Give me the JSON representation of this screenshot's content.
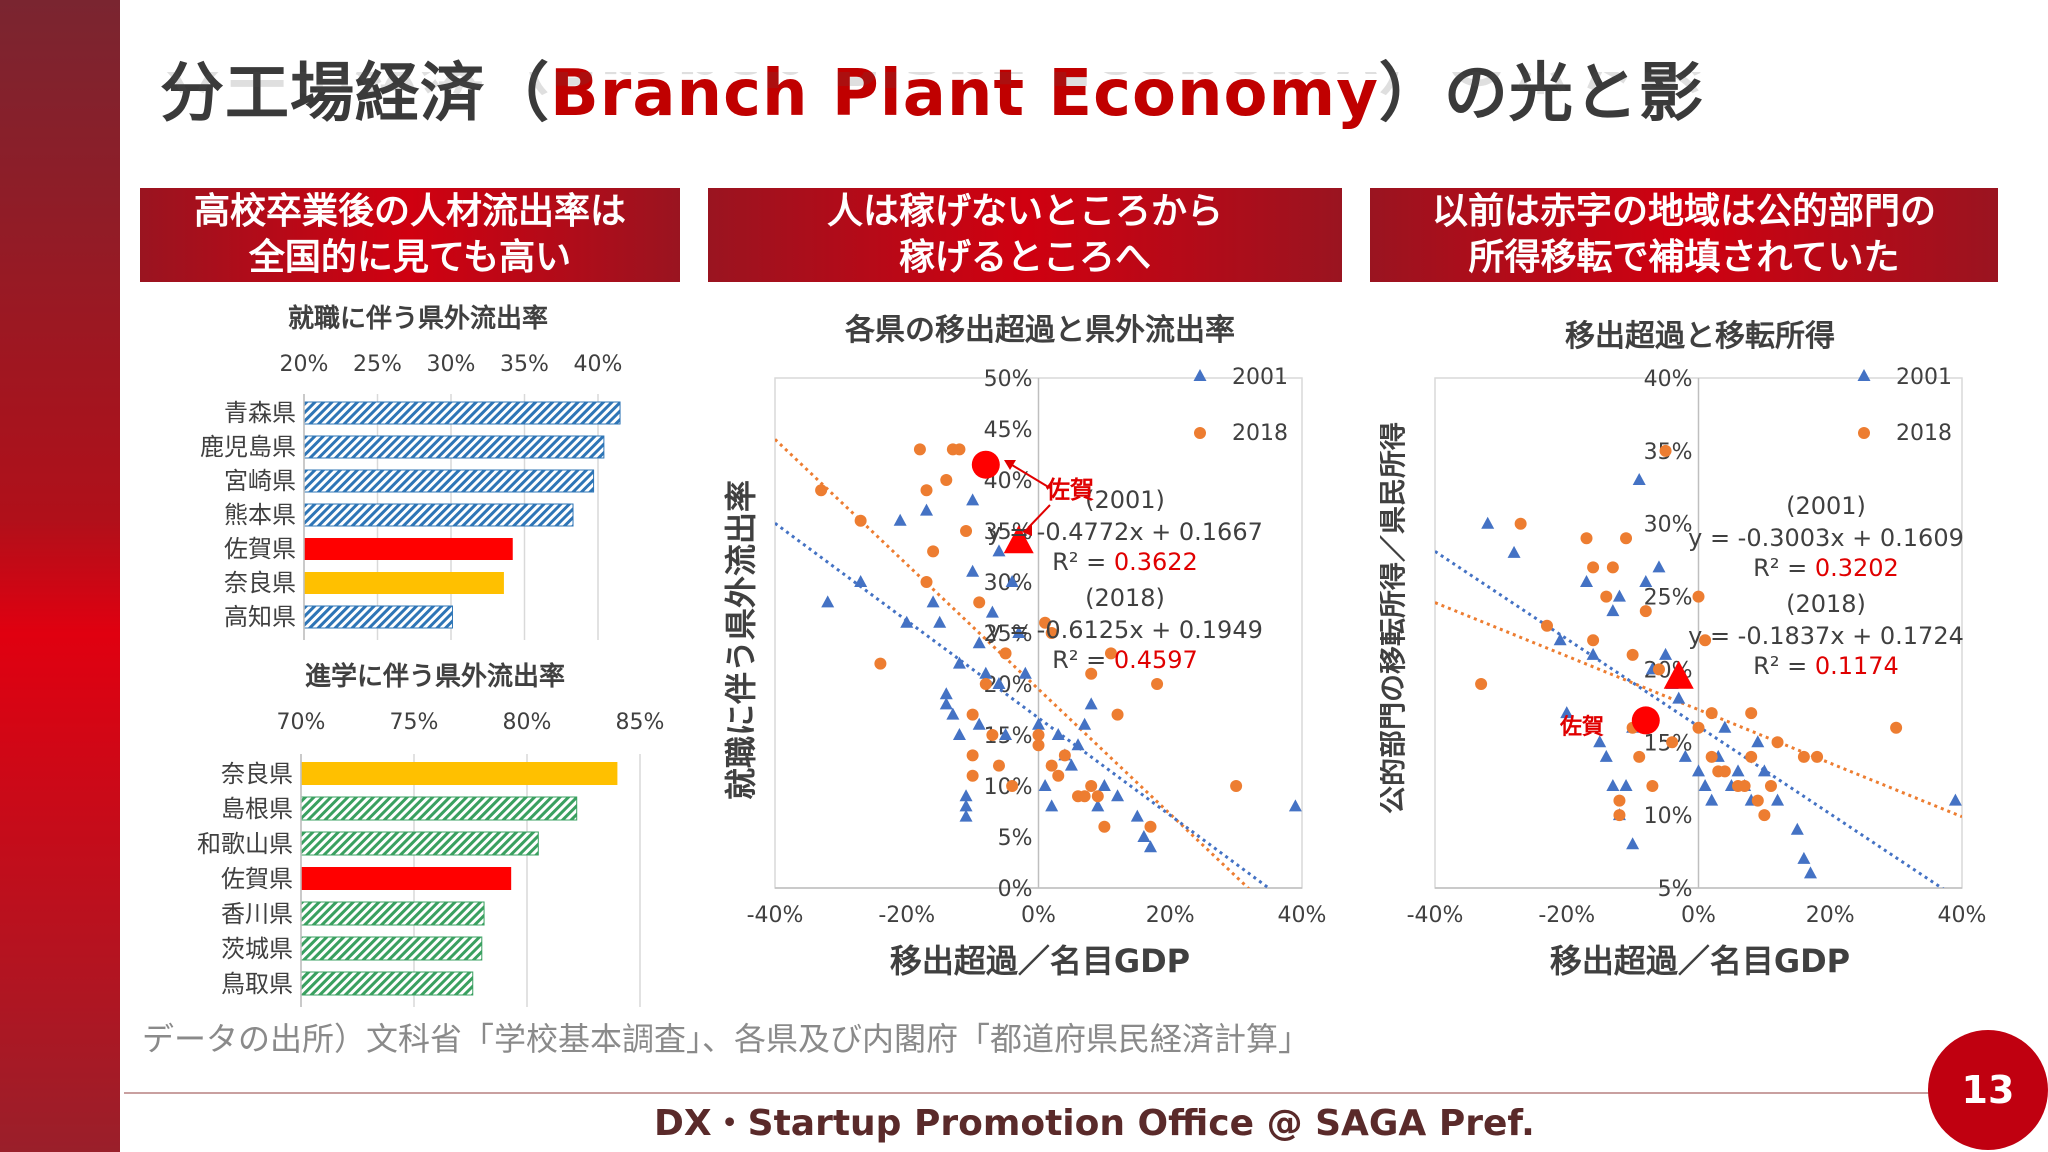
{
  "title": {
    "part1": "分工場経済（",
    "part2": "Branch Plant Economy",
    "part3": "）の光と影"
  },
  "headers": [
    {
      "text": "高校卒業後の人材流出率は\n全国的に見ても高い"
    },
    {
      "text": "人は稼げないところから\n稼げるところへ"
    },
    {
      "text": "以前は赤字の地域は公的部門の\n所得移転で補填されていた"
    }
  ],
  "colors": {
    "hatch_blue": "#2e75b6",
    "hatch_green": "#3aa060",
    "red": "#ff0000",
    "yellow": "#ffc000",
    "tri": "#4472c4",
    "dot": "#ed7d31"
  },
  "bar1": {
    "title": "就職に伴う県外流出率",
    "ticks": [
      "20%",
      "25%",
      "30%",
      "35%",
      "40%"
    ],
    "xmin": 20,
    "xmax": 40,
    "items": [
      {
        "label": "青森県",
        "value": 41.5,
        "style": "blue"
      },
      {
        "label": "鹿児島県",
        "value": 40.4,
        "style": "blue"
      },
      {
        "label": "宮崎県",
        "value": 39.7,
        "style": "blue"
      },
      {
        "label": "熊本県",
        "value": 38.3,
        "style": "blue"
      },
      {
        "label": "佐賀県",
        "value": 34.2,
        "style": "red"
      },
      {
        "label": "奈良県",
        "value": 33.6,
        "style": "yellow"
      },
      {
        "label": "高知県",
        "value": 30.1,
        "style": "blue"
      }
    ]
  },
  "bar2": {
    "title": "進学に伴う県外流出率",
    "ticks": [
      "70%",
      "75%",
      "80%",
      "85%"
    ],
    "xmin": 70,
    "xmax": 85,
    "items": [
      {
        "label": "奈良県",
        "value": 84.0,
        "style": "yellow"
      },
      {
        "label": "島根県",
        "value": 82.2,
        "style": "green"
      },
      {
        "label": "和歌山県",
        "value": 80.5,
        "style": "green"
      },
      {
        "label": "佐賀県",
        "value": 79.3,
        "style": "red"
      },
      {
        "label": "香川県",
        "value": 78.1,
        "style": "green"
      },
      {
        "label": "茨城県",
        "value": 78.0,
        "style": "green"
      },
      {
        "label": "鳥取県",
        "value": 77.6,
        "style": "green"
      }
    ]
  },
  "chart_data": [
    {
      "type": "scatter",
      "title": "各県の移出超過と県外流出率",
      "xlabel": "移出超過／名目GDP",
      "ylabel": "就職に伴う県外流出率",
      "xlim": [
        -40,
        40
      ],
      "ylim": [
        0,
        50
      ],
      "xticks": [
        "-40%",
        "-20%",
        "0%",
        "20%",
        "40%"
      ],
      "yticks": [
        "0%",
        "5%",
        "10%",
        "15%",
        "20%",
        "25%",
        "30%",
        "35%",
        "40%",
        "45%",
        "50%"
      ],
      "legend": [
        "2001",
        "2018"
      ],
      "eq2001": {
        "head": "(2001)",
        "eq": "y = -0.4772x + 0.1667",
        "r2label": "R² = ",
        "r2": "0.3622"
      },
      "eq2018": {
        "head": "(2018)",
        "eq": "y = -0.6125x + 0.1949",
        "r2label": "R² = ",
        "r2": "0.4597"
      },
      "saga_label": "佐賀",
      "saga2001": [
        -3,
        34
      ],
      "saga2018": [
        -8,
        41.5
      ],
      "trend2001": {
        "slope": -0.4772,
        "intercept": 16.67
      },
      "trend2018": {
        "slope": -0.6125,
        "intercept": 19.49
      },
      "series": [
        {
          "name": "2001",
          "points": [
            [
              -32,
              28
            ],
            [
              -27,
              30
            ],
            [
              -21,
              36
            ],
            [
              -20,
              26
            ],
            [
              -17,
              37
            ],
            [
              -16,
              28
            ],
            [
              -15,
              26
            ],
            [
              -14,
              19
            ],
            [
              -14,
              18
            ],
            [
              -13,
              17
            ],
            [
              -12,
              15
            ],
            [
              -12,
              22
            ],
            [
              -11,
              9
            ],
            [
              -11,
              8
            ],
            [
              -11,
              7
            ],
            [
              -10,
              38
            ],
            [
              -10,
              31
            ],
            [
              -9,
              24
            ],
            [
              -9,
              16
            ],
            [
              -8,
              21
            ],
            [
              -7,
              27
            ],
            [
              -6,
              33
            ],
            [
              -6,
              20
            ],
            [
              -5,
              15
            ],
            [
              -4,
              30
            ],
            [
              -3,
              25
            ],
            [
              -2,
              21
            ],
            [
              0,
              16
            ],
            [
              1,
              10
            ],
            [
              2,
              8
            ],
            [
              3,
              15
            ],
            [
              4,
              13
            ],
            [
              5,
              12
            ],
            [
              6,
              14
            ],
            [
              7,
              16
            ],
            [
              8,
              18
            ],
            [
              9,
              8
            ],
            [
              10,
              10
            ],
            [
              12,
              9
            ],
            [
              15,
              7
            ],
            [
              16,
              5
            ],
            [
              17,
              4
            ],
            [
              39,
              8
            ]
          ]
        },
        {
          "name": "2018",
          "points": [
            [
              -33,
              39
            ],
            [
              -27,
              36
            ],
            [
              -24,
              22
            ],
            [
              -18,
              43
            ],
            [
              -17,
              39
            ],
            [
              -17,
              30
            ],
            [
              -16,
              33
            ],
            [
              -14,
              40
            ],
            [
              -13,
              43
            ],
            [
              -12,
              43
            ],
            [
              -11,
              35
            ],
            [
              -10,
              17
            ],
            [
              -10,
              13
            ],
            [
              -10,
              11
            ],
            [
              -9,
              28
            ],
            [
              -8,
              20
            ],
            [
              -7,
              15
            ],
            [
              -6,
              12
            ],
            [
              -5,
              23
            ],
            [
              -4,
              10
            ],
            [
              0,
              15
            ],
            [
              0,
              14
            ],
            [
              1,
              26
            ],
            [
              2,
              25
            ],
            [
              2,
              12
            ],
            [
              3,
              11
            ],
            [
              4,
              13
            ],
            [
              6,
              9
            ],
            [
              7,
              9
            ],
            [
              8,
              10
            ],
            [
              8,
              21
            ],
            [
              9,
              9
            ],
            [
              10,
              6
            ],
            [
              11,
              23
            ],
            [
              12,
              17
            ],
            [
              17,
              6
            ],
            [
              18,
              20
            ],
            [
              30,
              10
            ]
          ]
        }
      ]
    },
    {
      "type": "scatter",
      "title": "移出超過と移転所得",
      "xlabel": "移出超過／名目GDP",
      "ylabel": "公的部門の移転所得／県民所得",
      "xlim": [
        -40,
        40
      ],
      "ylim": [
        5,
        40
      ],
      "xticks": [
        "-40%",
        "-20%",
        "0%",
        "20%",
        "40%"
      ],
      "yticks": [
        "5%",
        "10%",
        "15%",
        "20%",
        "25%",
        "30%",
        "35%",
        "40%"
      ],
      "legend": [
        "2001",
        "2018"
      ],
      "eq2001": {
        "head": "(2001)",
        "eq": "y = -0.3003x + 0.1609",
        "r2label": "R² = ",
        "r2": "0.3202"
      },
      "eq2018": {
        "head": "(2018)",
        "eq": "y = -0.1837x + 0.1724",
        "r2label": "R² = ",
        "r2": "0.1174"
      },
      "saga_label": "佐賀",
      "saga2001": [
        -3,
        19.5
      ],
      "saga2018": [
        -8,
        16.5
      ],
      "trend2001": {
        "slope": -0.3003,
        "intercept": 16.09
      },
      "trend2018": {
        "slope": -0.1837,
        "intercept": 17.24
      },
      "series": [
        {
          "name": "2001",
          "points": [
            [
              -32,
              30
            ],
            [
              -28,
              28
            ],
            [
              -21,
              22
            ],
            [
              -20,
              17
            ],
            [
              -17,
              26
            ],
            [
              -16,
              21
            ],
            [
              -15,
              15
            ],
            [
              -14,
              14
            ],
            [
              -13,
              24
            ],
            [
              -13,
              12
            ],
            [
              -12,
              25
            ],
            [
              -12,
              10
            ],
            [
              -11,
              12
            ],
            [
              -10,
              16
            ],
            [
              -10,
              8
            ],
            [
              -9,
              33
            ],
            [
              -8,
              26
            ],
            [
              -7,
              20
            ],
            [
              -6,
              27
            ],
            [
              -5,
              21
            ],
            [
              -4,
              19
            ],
            [
              -3,
              18
            ],
            [
              -2,
              14
            ],
            [
              0,
              13
            ],
            [
              1,
              12
            ],
            [
              2,
              11
            ],
            [
              3,
              14
            ],
            [
              4,
              16
            ],
            [
              5,
              12
            ],
            [
              6,
              13
            ],
            [
              7,
              12
            ],
            [
              8,
              11
            ],
            [
              9,
              15
            ],
            [
              10,
              13
            ],
            [
              12,
              11
            ],
            [
              15,
              9
            ],
            [
              16,
              7
            ],
            [
              17,
              6
            ],
            [
              39,
              11
            ]
          ]
        },
        {
          "name": "2018",
          "points": [
            [
              -33,
              19
            ],
            [
              -27,
              30
            ],
            [
              -23,
              23
            ],
            [
              -17,
              29
            ],
            [
              -16,
              27
            ],
            [
              -16,
              22
            ],
            [
              -14,
              25
            ],
            [
              -13,
              27
            ],
            [
              -12,
              11
            ],
            [
              -12,
              10
            ],
            [
              -11,
              29
            ],
            [
              -10,
              21
            ],
            [
              -10,
              16
            ],
            [
              -9,
              14
            ],
            [
              -8,
              24
            ],
            [
              -7,
              12
            ],
            [
              -6,
              20
            ],
            [
              -5,
              35
            ],
            [
              -4,
              15
            ],
            [
              0,
              25
            ],
            [
              0,
              16
            ],
            [
              1,
              22
            ],
            [
              2,
              17
            ],
            [
              2,
              14
            ],
            [
              3,
              13
            ],
            [
              4,
              13
            ],
            [
              6,
              12
            ],
            [
              7,
              12
            ],
            [
              8,
              14
            ],
            [
              8,
              17
            ],
            [
              9,
              11
            ],
            [
              10,
              10
            ],
            [
              11,
              12
            ],
            [
              12,
              15
            ],
            [
              16,
              14
            ],
            [
              18,
              14
            ],
            [
              30,
              16
            ]
          ]
        }
      ]
    }
  ],
  "source": "データの出所）文科省「学校基本調査」、各県及び内閣府「都道府県民経済計算」",
  "footer": "DX・Startup Promotion Office @ SAGA Pref.",
  "page": "13"
}
